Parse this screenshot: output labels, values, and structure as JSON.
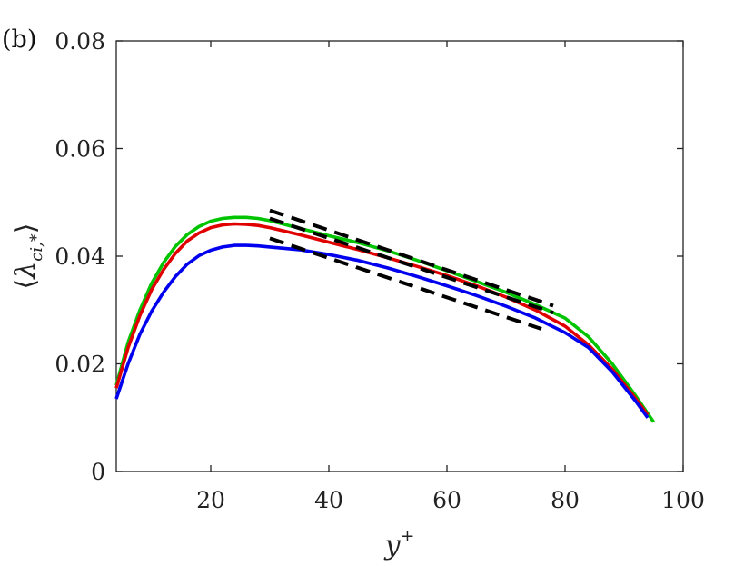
{
  "panel_label": "(b)",
  "chart_data": {
    "type": "line",
    "title": "",
    "xlabel": {
      "base": "y",
      "sup": "+"
    },
    "ylabel": {
      "open": "⟨",
      "base": "λ",
      "sub": "ci,*",
      "close": "⟩"
    },
    "xlim": [
      4,
      100
    ],
    "ylim": [
      0,
      0.08
    ],
    "xticks": [
      20,
      40,
      60,
      80,
      100
    ],
    "xtick_labels": [
      "20",
      "40",
      "60",
      "80",
      "100"
    ],
    "yticks": [
      0,
      0.02,
      0.04,
      0.06,
      0.08
    ],
    "ytick_labels": [
      "0",
      "0.02",
      "0.04",
      "0.06",
      "0.08"
    ],
    "grid": false,
    "series": [
      {
        "color": "#00c400",
        "style": "solid",
        "x": [
          4,
          6,
          8,
          10,
          12,
          14,
          16,
          18,
          20,
          22,
          24,
          26,
          28,
          30,
          35,
          40,
          45,
          50,
          55,
          60,
          65,
          70,
          75,
          80,
          84,
          88,
          92,
          95
        ],
        "y": [
          0.016,
          0.024,
          0.03,
          0.035,
          0.0388,
          0.0418,
          0.044,
          0.0455,
          0.0465,
          0.047,
          0.0472,
          0.0472,
          0.047,
          0.0466,
          0.0452,
          0.0438,
          0.0425,
          0.041,
          0.0392,
          0.0373,
          0.0353,
          0.0333,
          0.031,
          0.0285,
          0.025,
          0.02,
          0.014,
          0.0092
        ]
      },
      {
        "color": "#e00000",
        "style": "solid",
        "x": [
          4,
          6,
          8,
          10,
          12,
          14,
          16,
          18,
          20,
          22,
          24,
          26,
          28,
          30,
          35,
          40,
          45,
          50,
          55,
          60,
          65,
          70,
          75,
          80,
          84,
          88,
          92,
          94
        ],
        "y": [
          0.0155,
          0.023,
          0.029,
          0.0338,
          0.0375,
          0.0405,
          0.0428,
          0.0443,
          0.0453,
          0.0458,
          0.046,
          0.0459,
          0.0457,
          0.0453,
          0.044,
          0.0426,
          0.0412,
          0.0397,
          0.0381,
          0.0364,
          0.0345,
          0.0324,
          0.03,
          0.027,
          0.0235,
          0.019,
          0.0135,
          0.0105
        ]
      },
      {
        "color": "#0000ee",
        "style": "solid",
        "x": [
          4,
          6,
          8,
          10,
          12,
          14,
          16,
          18,
          20,
          22,
          24,
          26,
          28,
          30,
          35,
          40,
          45,
          50,
          55,
          60,
          65,
          70,
          75,
          80,
          84,
          88,
          92,
          94
        ],
        "y": [
          0.0135,
          0.02,
          0.0255,
          0.0298,
          0.0333,
          0.0362,
          0.0385,
          0.0401,
          0.0411,
          0.0417,
          0.042,
          0.042,
          0.0419,
          0.0417,
          0.0412,
          0.0403,
          0.0392,
          0.0378,
          0.0362,
          0.0345,
          0.0327,
          0.0307,
          0.0285,
          0.0258,
          0.023,
          0.0185,
          0.013,
          0.01
        ]
      },
      {
        "color": "#000000",
        "style": "dashed",
        "x": [
          30,
          78
        ],
        "y": [
          0.0485,
          0.0308
        ]
      },
      {
        "color": "#000000",
        "style": "dashed",
        "x": [
          30,
          78
        ],
        "y": [
          0.047,
          0.0295
        ]
      },
      {
        "color": "#000000",
        "style": "dashed",
        "x": [
          30,
          76
        ],
        "y": [
          0.0433,
          0.0265
        ]
      }
    ]
  }
}
